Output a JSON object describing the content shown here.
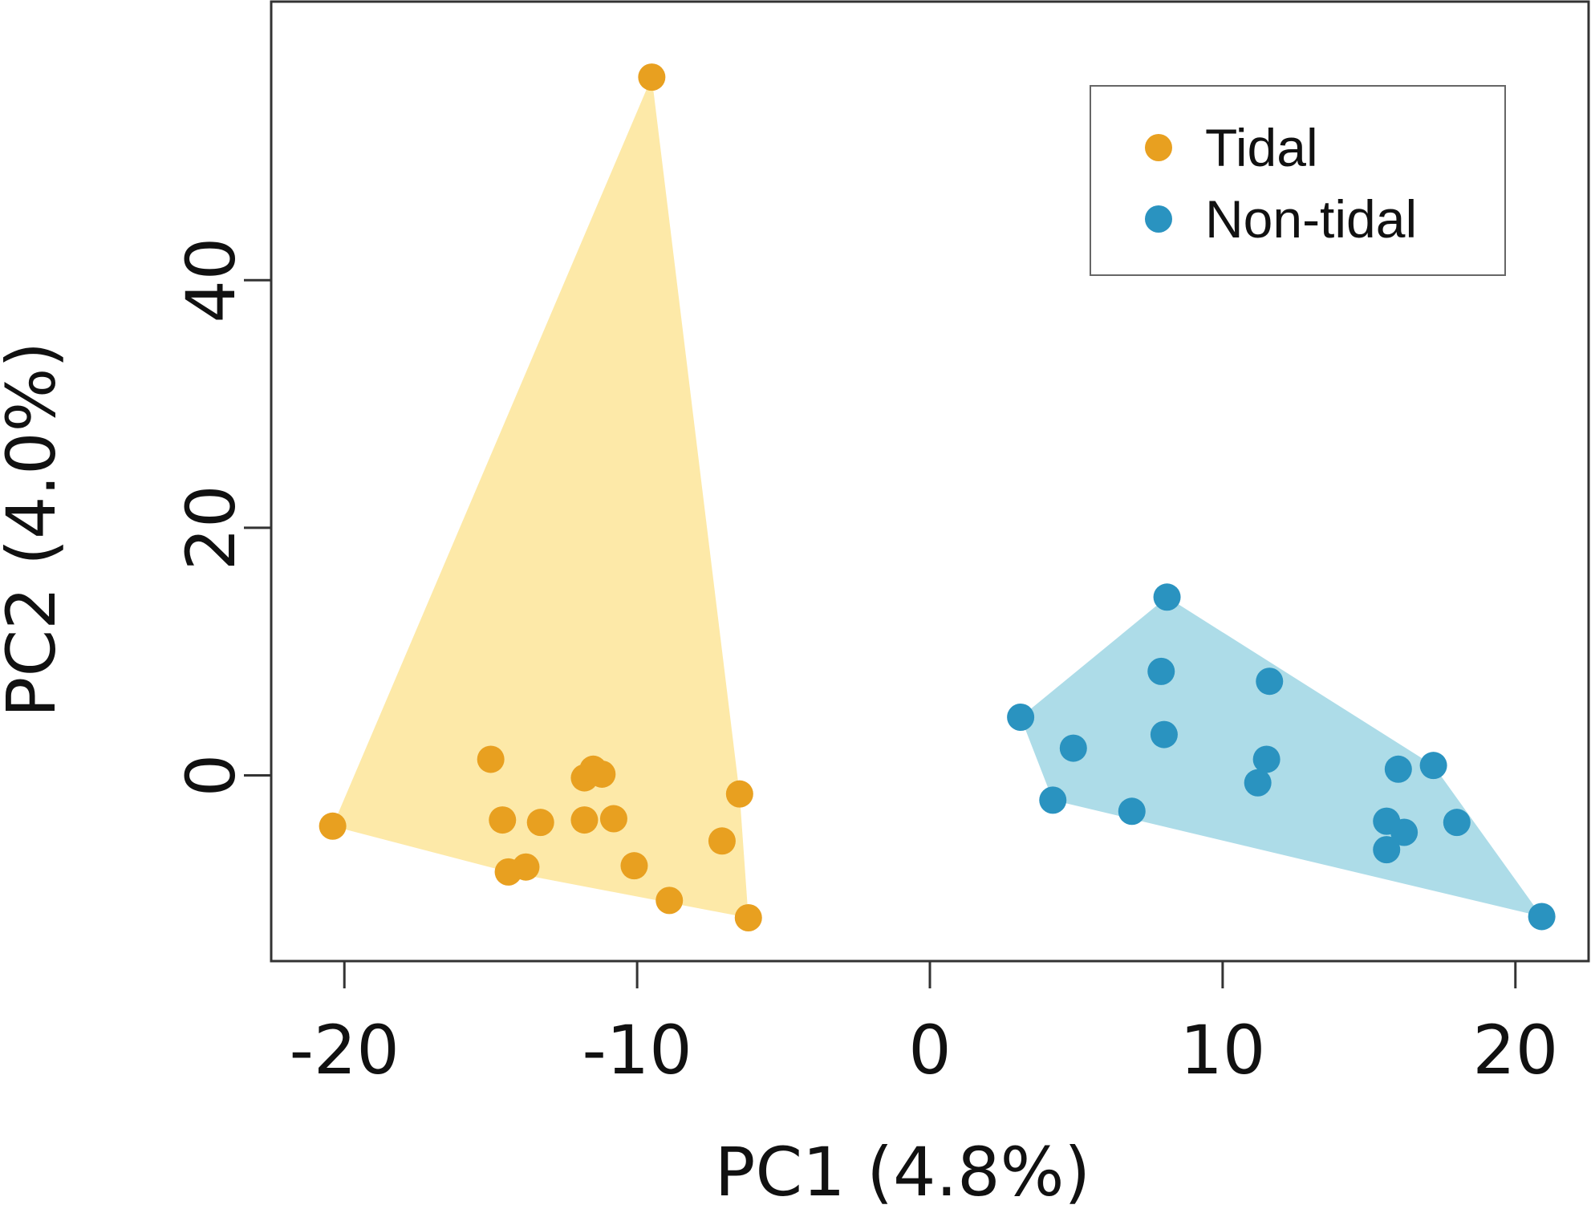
{
  "chart_data": {
    "type": "scatter",
    "title": "",
    "xlabel": "PC1 (4.8%)",
    "ylabel": "PC2 (4.0%)",
    "xlim": [
      -22.5,
      22.5
    ],
    "ylim": [
      -15,
      62.5
    ],
    "xticks": [
      -20,
      -10,
      0,
      10,
      20
    ],
    "xtick_labels": [
      "-20",
      "-10",
      "0",
      "10",
      "20"
    ],
    "yticks": [
      0,
      20,
      40
    ],
    "ytick_labels": [
      "0",
      "20",
      "40"
    ],
    "grid": false,
    "legend_position": "top-right",
    "hulls": true,
    "series": [
      {
        "name": "Tidal",
        "color": "#E8A020",
        "hull_color": "#FDE9A8",
        "points": [
          [
            -9.5,
            56.4
          ],
          [
            -20.4,
            -4.1
          ],
          [
            -15.0,
            1.3
          ],
          [
            -14.6,
            -3.6
          ],
          [
            -14.4,
            -7.8
          ],
          [
            -13.8,
            -7.4
          ],
          [
            -13.3,
            -3.8
          ],
          [
            -11.8,
            -3.6
          ],
          [
            -11.8,
            -0.2
          ],
          [
            -11.5,
            0.5
          ],
          [
            -11.2,
            0.1
          ],
          [
            -10.8,
            -3.5
          ],
          [
            -10.1,
            -7.3
          ],
          [
            -8.9,
            -10.1
          ],
          [
            -7.1,
            -5.3
          ],
          [
            -6.5,
            -1.5
          ],
          [
            -6.2,
            -11.5
          ]
        ]
      },
      {
        "name": "Non-tidal",
        "color": "#2A93C0",
        "hull_color": "#ADDCE8",
        "points": [
          [
            3.1,
            4.7
          ],
          [
            4.2,
            -2.0
          ],
          [
            4.9,
            2.2
          ],
          [
            6.9,
            -2.9
          ],
          [
            7.9,
            8.4
          ],
          [
            8.0,
            3.3
          ],
          [
            8.1,
            14.4
          ],
          [
            11.2,
            -0.6
          ],
          [
            11.5,
            1.3
          ],
          [
            11.6,
            7.6
          ],
          [
            15.6,
            -3.7
          ],
          [
            15.6,
            -6.0
          ],
          [
            16.0,
            0.5
          ],
          [
            16.2,
            -4.6
          ],
          [
            17.2,
            0.8
          ],
          [
            18.0,
            -3.8
          ],
          [
            20.9,
            -11.4
          ]
        ]
      }
    ]
  }
}
